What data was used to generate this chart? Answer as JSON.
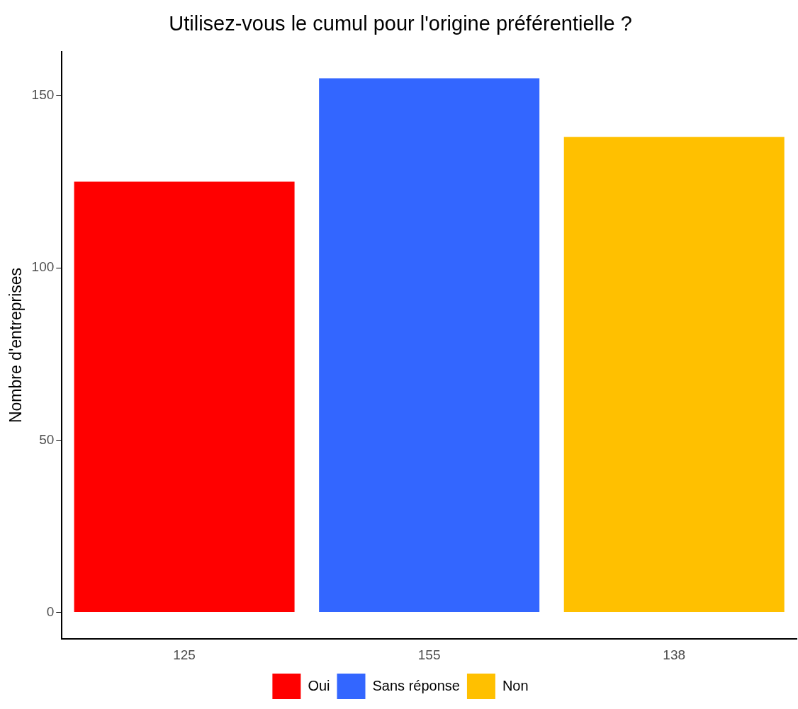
{
  "chart_data": {
    "type": "bar",
    "title": "Utilisez-vous le cumul pour l'origine préférentielle ?",
    "ylabel": "Nombre d'entreprises",
    "categories": [
      "125",
      "155",
      "138"
    ],
    "series": [
      {
        "name": "Oui",
        "color": "#ff0000",
        "values": [
          125,
          null,
          null
        ]
      },
      {
        "name": "Sans réponse",
        "color": "#3366ff",
        "values": [
          null,
          155,
          null
        ]
      },
      {
        "name": "Non",
        "color": "#ffc000",
        "values": [
          null,
          null,
          138
        ]
      }
    ],
    "ylim": [
      -7.75,
      162.75
    ],
    "yticks": [
      0,
      50,
      100,
      150
    ],
    "legend": "bottom"
  }
}
